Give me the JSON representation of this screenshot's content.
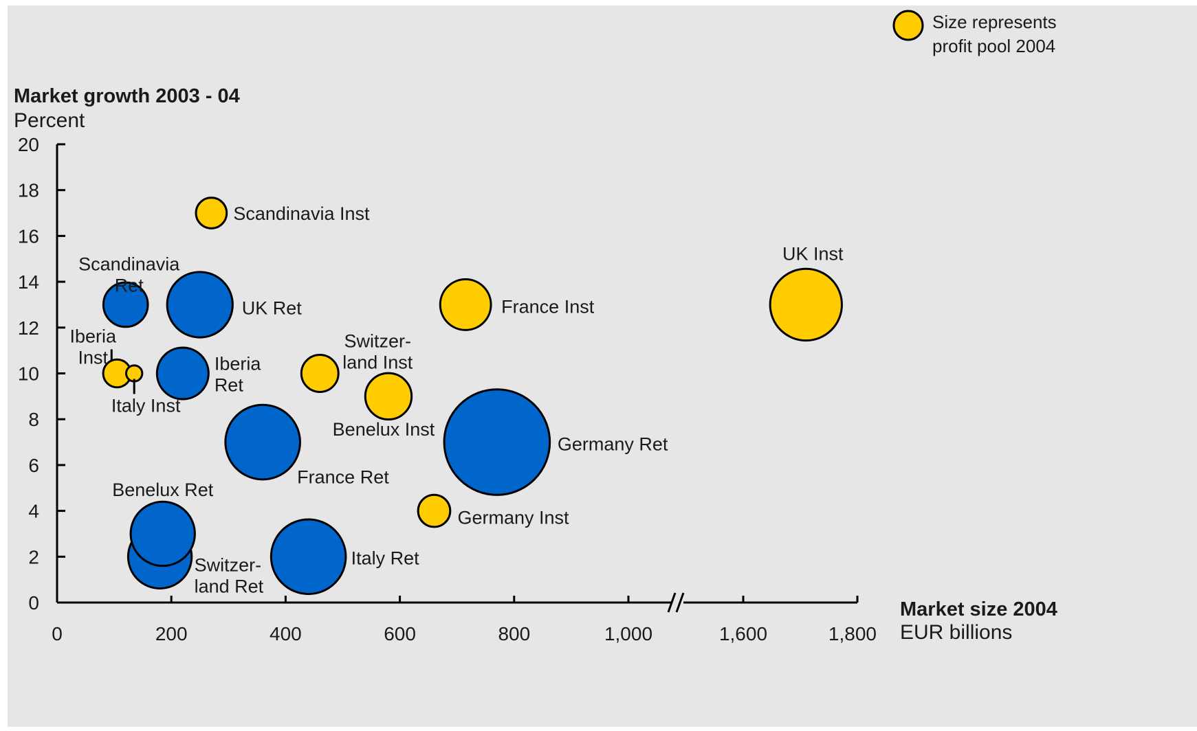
{
  "chart_data": {
    "type": "bubble",
    "title": "",
    "ylabel": "Market growth 2003 - 04",
    "ylabel_unit": "Percent",
    "xlabel": "Market size 2004",
    "xlabel_unit": "EUR billions",
    "ylim": [
      0,
      20
    ],
    "yticks": [
      0,
      2,
      4,
      6,
      8,
      10,
      12,
      14,
      16,
      18,
      20
    ],
    "xaxis_break": "between 1,000 and 1,600",
    "xticks": [
      {
        "value": 0,
        "label": "0"
      },
      {
        "value": 200,
        "label": "200"
      },
      {
        "value": 400,
        "label": "400"
      },
      {
        "value": 600,
        "label": "600"
      },
      {
        "value": 800,
        "label": "800"
      },
      {
        "value": 1000,
        "label": "1,000"
      },
      {
        "value": 1600,
        "label": "1,600"
      },
      {
        "value": 1800,
        "label": "1,800"
      }
    ],
    "legend": {
      "text_line1": "Size represents",
      "text_line2": "profit pool 2004",
      "position": "top-right"
    },
    "series": [
      {
        "type": "Inst",
        "color": "#ffcc00",
        "points": [
          {
            "name": "Scandinavia Inst",
            "label_lines": [
              "Scandinavia Inst"
            ],
            "x": 270,
            "y": 17,
            "size": 1.1
          },
          {
            "name": "France Inst",
            "label_lines": [
              "France Inst"
            ],
            "x": 715,
            "y": 13,
            "size": 3.0
          },
          {
            "name": "UK Inst",
            "label_lines": [
              "UK Inst"
            ],
            "x": 1710,
            "y": 13,
            "size": 6.0
          },
          {
            "name": "Switzerland Inst",
            "label_lines": [
              "Switzer-",
              "land Inst"
            ],
            "x": 460,
            "y": 10,
            "size": 1.6
          },
          {
            "name": "Iberia Inst",
            "label_lines": [
              "Iberia",
              "Inst"
            ],
            "x": 105,
            "y": 10,
            "size": 0.9
          },
          {
            "name": "Italy Inst",
            "label_lines": [
              "Italy Inst"
            ],
            "x": 135,
            "y": 10,
            "size": 0.3
          },
          {
            "name": "Benelux Inst",
            "label_lines": [
              "Benelux Inst"
            ],
            "x": 580,
            "y": 9,
            "size": 2.5
          },
          {
            "name": "Germany Inst",
            "label_lines": [
              "Germany Inst"
            ],
            "x": 660,
            "y": 4,
            "size": 1.2
          }
        ]
      },
      {
        "type": "Ret",
        "color": "#0066cc",
        "points": [
          {
            "name": "Scandinavia Ret",
            "label_lines": [
              "Scandinavia",
              "Ret"
            ],
            "x": 120,
            "y": 13,
            "size": 2.3
          },
          {
            "name": "UK Ret",
            "label_lines": [
              "UK Ret"
            ],
            "x": 250,
            "y": 13,
            "size": 5.0
          },
          {
            "name": "Iberia Ret",
            "label_lines": [
              "Iberia",
              "Ret"
            ],
            "x": 220,
            "y": 10,
            "size": 3.1
          },
          {
            "name": "France Ret",
            "label_lines": [
              "France Ret"
            ],
            "x": 360,
            "y": 7,
            "size": 6.5
          },
          {
            "name": "Germany Ret",
            "label_lines": [
              "Germany Ret"
            ],
            "x": 770,
            "y": 7,
            "size": 13.0
          },
          {
            "name": "Switzerland Ret",
            "label_lines": [
              "Switzer-",
              "land Ret"
            ],
            "x": 180,
            "y": 2,
            "size": 4.7
          },
          {
            "name": "Benelux Ret",
            "label_lines": [
              "Benelux Ret"
            ],
            "x": 185,
            "y": 3,
            "size": 4.8
          },
          {
            "name": "Italy Ret",
            "label_lines": [
              "Italy Ret"
            ],
            "x": 440,
            "y": 2,
            "size": 6.5
          }
        ]
      }
    ]
  }
}
